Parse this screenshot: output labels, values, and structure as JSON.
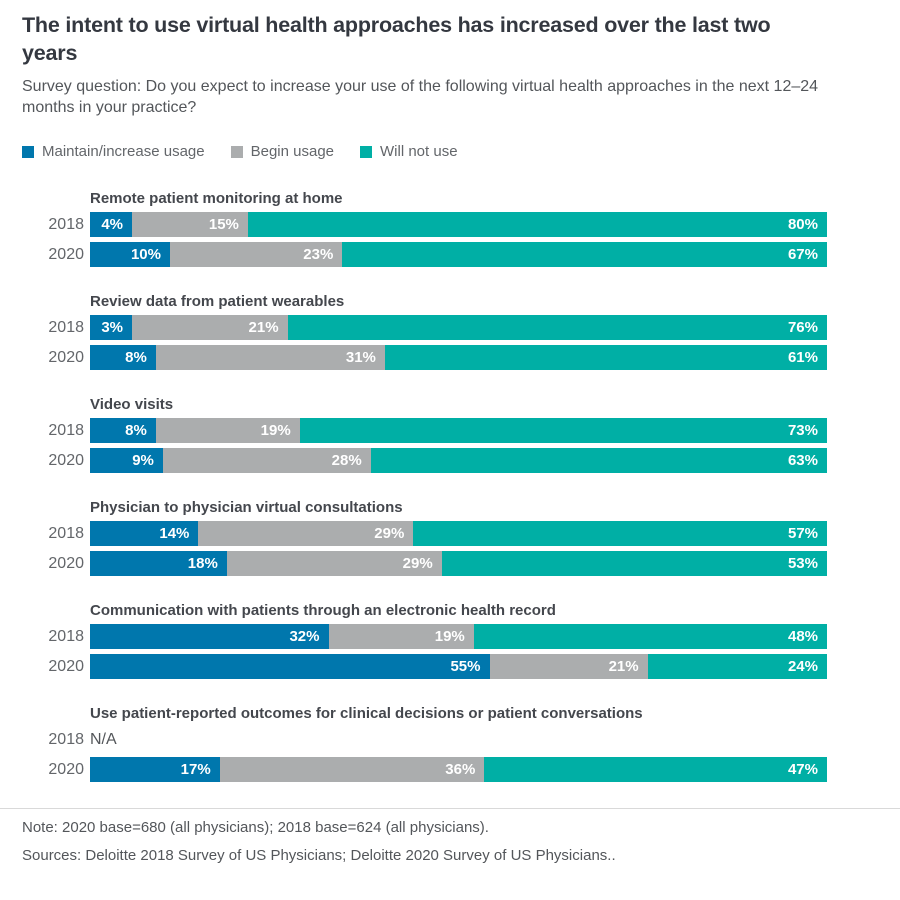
{
  "header": {
    "title": "The intent to use virtual health approaches has increased over the last two years",
    "subtitle": "Survey question: Do you expect to increase your use of the following virtual health approaches in the next 12–24 months in your practice?"
  },
  "legend": [
    {
      "label": "Maintain/increase usage",
      "color": "#0077ad"
    },
    {
      "label": "Begin usage",
      "color": "#abadae"
    },
    {
      "label": "Will not use",
      "color": "#00afa5"
    }
  ],
  "chart_data": {
    "type": "bar",
    "orientation": "horizontal",
    "stacked": true,
    "value_unit": "percent",
    "xlim": [
      0,
      100
    ],
    "grid": false,
    "legend_position": "top",
    "series_names": [
      "Maintain/increase usage",
      "Begin usage",
      "Will not use"
    ],
    "groups": [
      {
        "category": "Remote patient monitoring at home",
        "rows": [
          {
            "year": "2018",
            "values": [
              4,
              15,
              80
            ],
            "labels": [
              "4%",
              "15%",
              "80%"
            ]
          },
          {
            "year": "2020",
            "values": [
              10,
              23,
              67
            ],
            "labels": [
              "10%",
              "23%",
              "67%"
            ]
          }
        ]
      },
      {
        "category": "Review data from patient wearables",
        "rows": [
          {
            "year": "2018",
            "values": [
              3,
              21,
              76
            ],
            "labels": [
              "3%",
              "21%",
              "76%"
            ]
          },
          {
            "year": "2020",
            "values": [
              8,
              31,
              61
            ],
            "labels": [
              "8%",
              "31%",
              "61%"
            ]
          }
        ]
      },
      {
        "category": "Video visits",
        "rows": [
          {
            "year": "2018",
            "values": [
              8,
              19,
              73
            ],
            "labels": [
              "8%",
              "19%",
              "73%"
            ]
          },
          {
            "year": "2020",
            "values": [
              9,
              28,
              63
            ],
            "labels": [
              "9%",
              "28%",
              "63%"
            ]
          }
        ]
      },
      {
        "category": "Physician to physician virtual consultations",
        "rows": [
          {
            "year": "2018",
            "values": [
              14,
              29,
              57
            ],
            "labels": [
              "14%",
              "29%",
              "57%"
            ]
          },
          {
            "year": "2020",
            "values": [
              18,
              29,
              53
            ],
            "labels": [
              "18%",
              "29%",
              "53%"
            ]
          }
        ]
      },
      {
        "category": "Communication with patients through an electronic health record",
        "rows": [
          {
            "year": "2018",
            "values": [
              32,
              19,
              48
            ],
            "labels": [
              "32%",
              "19%",
              "48%"
            ]
          },
          {
            "year": "2020",
            "values": [
              55,
              21,
              24
            ],
            "labels": [
              "55%",
              "21%",
              "24%"
            ]
          }
        ]
      },
      {
        "category": "Use patient-reported outcomes for clinical decisions or patient conversations",
        "rows": [
          {
            "year": "2018",
            "na": true,
            "na_label": "N/A"
          },
          {
            "year": "2020",
            "values": [
              17,
              36,
              47
            ],
            "labels": [
              "17%",
              "36%",
              "47%"
            ]
          }
        ]
      }
    ]
  },
  "footer": {
    "note": "Note: 2020 base=680 (all physicians); 2018 base=624 (all physicians).",
    "sources": "Sources: Deloitte 2018 Survey of US Physicians; Deloitte 2020 Survey of US Physicians.."
  }
}
